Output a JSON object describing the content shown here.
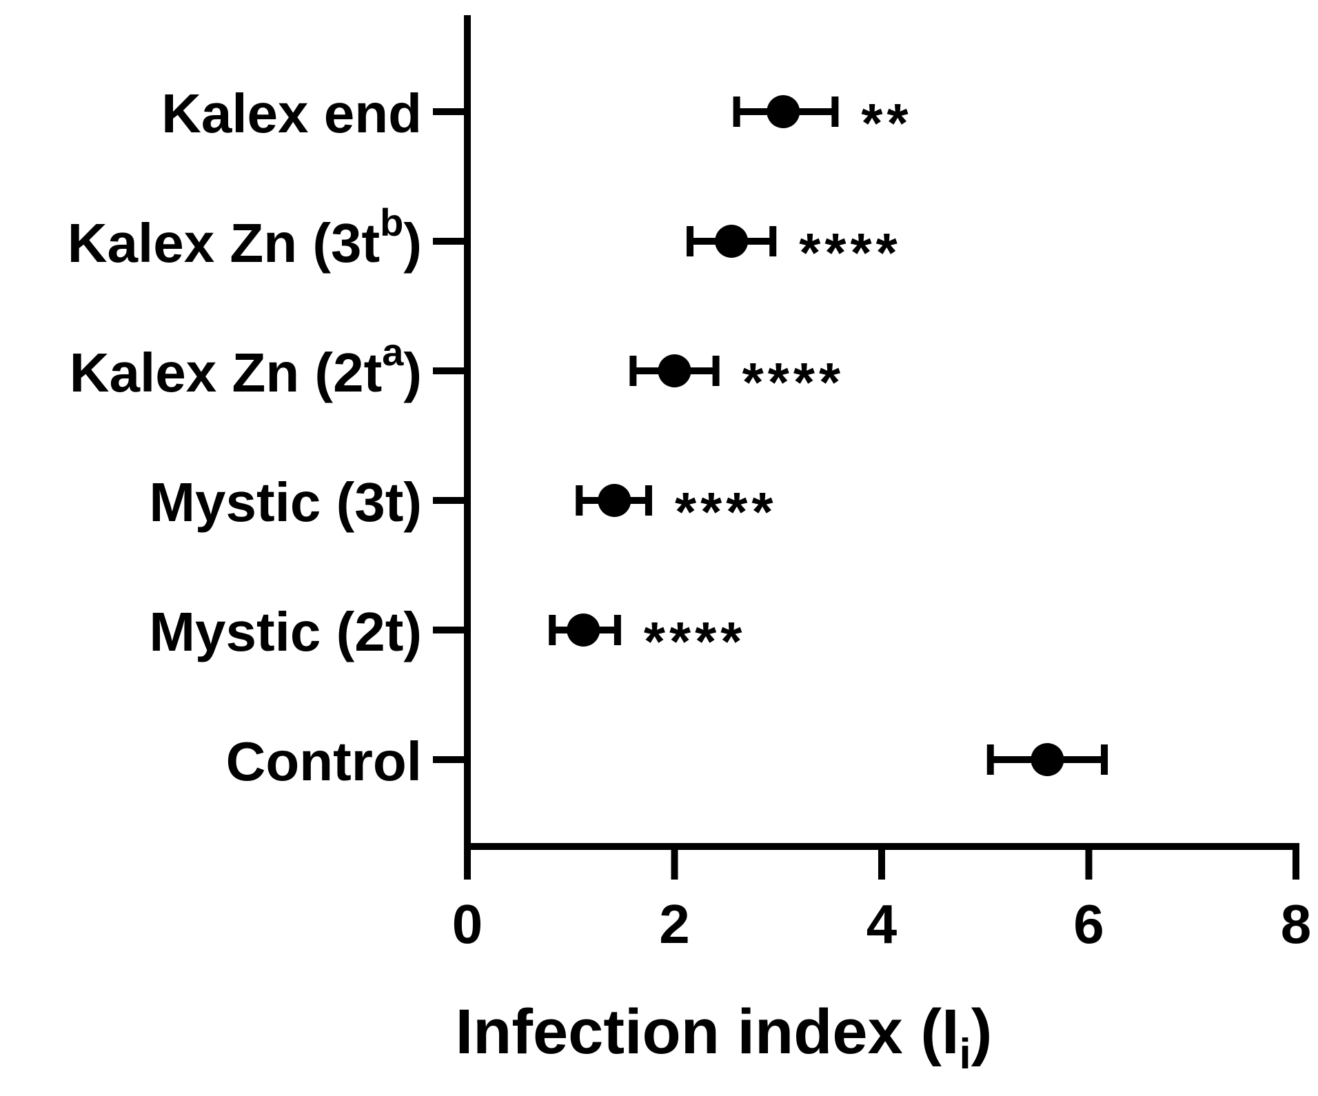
{
  "chart_data": {
    "type": "scatter",
    "orientation": "horizontal",
    "xlabel": "Infection index (I",
    "xlabel_subscript": "i",
    "xlabel_close": ")",
    "xlim": [
      0,
      8
    ],
    "xticks": [
      "0",
      "2",
      "4",
      "6",
      "8"
    ],
    "grid": false,
    "legend": "none",
    "marker_color": "#000000",
    "categories": [
      {
        "name": "Kalex end",
        "sup": "",
        "close": "",
        "mean": 3.05,
        "low": 2.6,
        "high": 3.55,
        "sig": "**"
      },
      {
        "name": "Kalex Zn  (3t",
        "sup": "b",
        "close": ")",
        "mean": 2.55,
        "low": 2.15,
        "high": 2.95,
        "sig": "****"
      },
      {
        "name": "Kalex Zn  (2t",
        "sup": "a",
        "close": ")",
        "mean": 2.0,
        "low": 1.6,
        "high": 2.4,
        "sig": "****"
      },
      {
        "name": "Mystic (3t)",
        "sup": "",
        "close": "",
        "mean": 1.42,
        "low": 1.08,
        "high": 1.75,
        "sig": "****"
      },
      {
        "name": "Mystic (2t)",
        "sup": "",
        "close": "",
        "mean": 1.12,
        "low": 0.82,
        "high": 1.45,
        "sig": "****"
      },
      {
        "name": "Control",
        "sup": "",
        "close": "",
        "mean": 5.6,
        "low": 5.05,
        "high": 6.15,
        "sig": ""
      }
    ]
  }
}
